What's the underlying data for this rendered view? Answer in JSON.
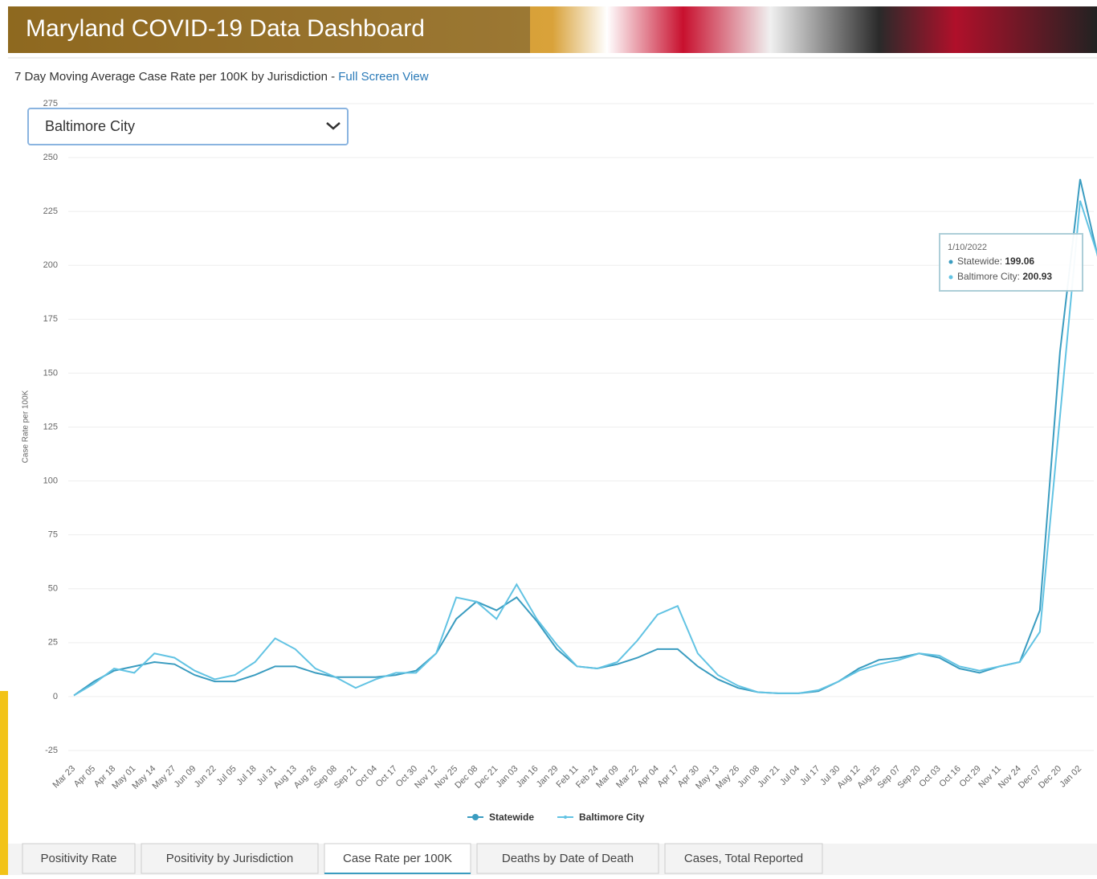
{
  "header": {
    "title": "Maryland COVID-19 Data Dashboard"
  },
  "subtitle": {
    "text": "7 Day Moving Average Case Rate per 100K by Jurisdiction - ",
    "link": "Full Screen View"
  },
  "dropdown": {
    "selected": "Baltimore City"
  },
  "tabs": [
    "Positivity Rate",
    "Positivity by Jurisdiction",
    "Case Rate per 100K",
    "Deaths by Date of Death",
    "Cases, Total Reported"
  ],
  "active_tab": 2,
  "chart_data": {
    "type": "line",
    "y_label": "Case Rate per 100K",
    "categories": [
      "Mar 23",
      "Apr 05",
      "Apr 18",
      "May 01",
      "May 14",
      "May 27",
      "Jun 09",
      "Jun 22",
      "Jul 05",
      "Jul 18",
      "Jul 31",
      "Aug 13",
      "Aug 26",
      "Sep 08",
      "Sep 21",
      "Oct 04",
      "Oct 17",
      "Oct 30",
      "Nov 12",
      "Nov 25",
      "Dec 08",
      "Dec 21",
      "Jan 03",
      "Jan 16",
      "Jan 29",
      "Feb 11",
      "Feb 24",
      "Mar 09",
      "Mar 22",
      "Apr 04",
      "Apr 17",
      "Apr 30",
      "May 13",
      "May 26",
      "Jun 08",
      "Jun 21",
      "Jul 04",
      "Jul 17",
      "Jul 30",
      "Aug 12",
      "Aug 25",
      "Sep 07",
      "Sep 20",
      "Oct 03",
      "Oct 16",
      "Oct 29",
      "Nov 11",
      "Nov 24",
      "Dec 07",
      "Dec 20",
      "Jan 02",
      null
    ],
    "series": [
      {
        "name": "Statewide",
        "color": "#3a9cc0",
        "values": [
          0.5,
          7,
          12,
          14,
          16,
          15,
          10,
          7,
          7,
          10,
          14,
          14,
          11,
          9,
          9,
          9,
          10,
          12,
          20,
          36,
          44,
          40,
          46,
          35,
          22,
          14,
          13,
          15,
          18,
          22,
          22,
          14,
          8,
          4,
          2,
          1.5,
          1.5,
          2.5,
          7,
          13,
          17,
          18,
          20,
          18,
          13,
          11,
          14,
          16,
          40,
          160,
          240,
          199.06
        ]
      },
      {
        "name": "Baltimore City",
        "color": "#62c3e3",
        "values": [
          0.5,
          6,
          13,
          11,
          20,
          18,
          12,
          8,
          10,
          16,
          27,
          22,
          13,
          9,
          4,
          8,
          11,
          11,
          20,
          46,
          44,
          36,
          52,
          36,
          24,
          14,
          13,
          16,
          26,
          38,
          42,
          20,
          10,
          5,
          2,
          1.5,
          1.5,
          3,
          7,
          12,
          15,
          17,
          20,
          19,
          14,
          12,
          14,
          16,
          30,
          130,
          230,
          200.93
        ]
      }
    ],
    "ylim": [
      -25,
      275
    ],
    "yticks": [
      -25,
      0,
      25,
      50,
      75,
      100,
      125,
      150,
      175,
      200,
      225,
      250,
      275
    ],
    "grid": true,
    "legend": "bottom",
    "tooltip": {
      "title": "1/10/2022",
      "labels": [
        "Statewide: ",
        "Baltimore City: "
      ],
      "index": 51
    }
  }
}
